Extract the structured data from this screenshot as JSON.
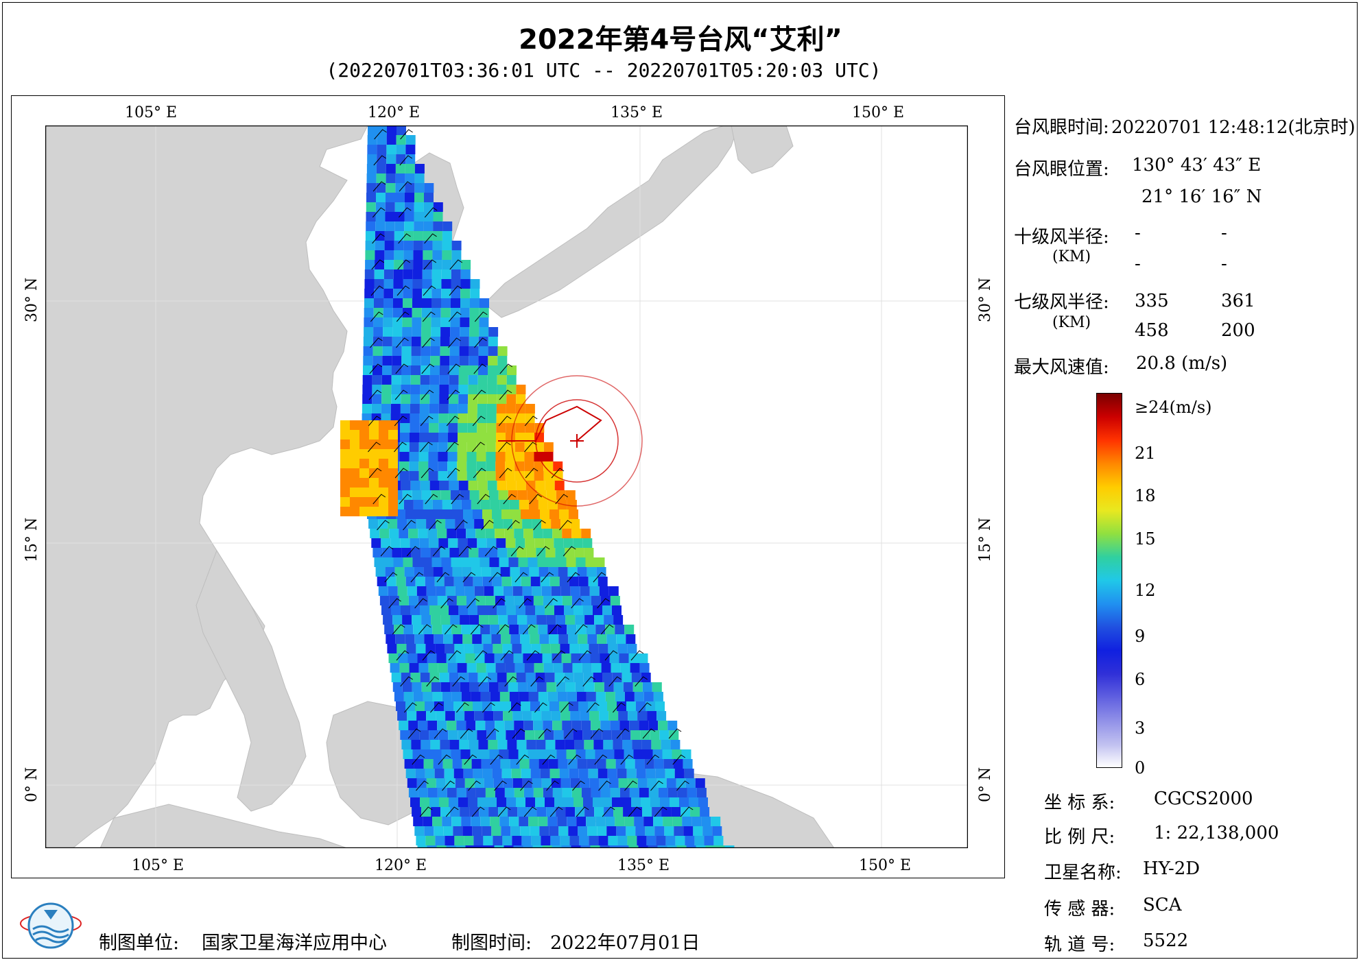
{
  "title": "2022年第4号台风“艾利”",
  "subtitle": "(20220701T03:36:01 UTC -- 20220701T05:20:03 UTC)",
  "map": {
    "lon_ticks_top": [
      "105° E",
      "120° E",
      "135° E",
      "150° E"
    ],
    "lon_ticks_bottom": [
      "105° E",
      "120° E",
      "135° E",
      "150° E"
    ],
    "lat_ticks_left": [
      "30° N",
      "15° N",
      "0° N"
    ],
    "lat_ticks_right": [
      "30° N",
      "15° N",
      "0° N"
    ],
    "land_color": "#d3d3d3",
    "sea_color": "#ffffff",
    "typhoon_track_color": "#cc0000"
  },
  "info": {
    "eye_time_label": "台风眼时间:",
    "eye_time_value": "20220701 12:48:12(北京时)",
    "eye_pos_label": "台风眼位置:",
    "eye_lon": "130° 43′ 43″ E",
    "eye_lat": "21° 16′ 16″ N",
    "r10_label": "十级风半径:",
    "r10_unit": "(KM)",
    "r10_values": [
      "-",
      "-",
      "-",
      "-"
    ],
    "r7_label": "七级风半径:",
    "r7_unit": "(KM)",
    "r7_values": [
      "335",
      "361",
      "458",
      "200"
    ],
    "max_wind_label": "最大风速值:",
    "max_wind_value": "20.8  (m/s)"
  },
  "colorbar": {
    "labels": [
      "≥24(m/s)",
      "21",
      "18",
      "15",
      "12",
      "9",
      "6",
      "3",
      "0"
    ],
    "colors": [
      "#7a0000",
      "#cc0000",
      "#ff3300",
      "#ff8800",
      "#ffcc00",
      "#e8e820",
      "#90e040",
      "#30d0a0",
      "#20c8e8",
      "#2090f0",
      "#2050e0",
      "#1020e0",
      "#3030d8",
      "#6060e0",
      "#9090e8",
      "#c0c0f0",
      "#ffffff"
    ]
  },
  "meta": {
    "crs_label": "坐 标 系:",
    "crs_value": "CGCS2000",
    "scale_label": "比 例 尺:",
    "scale_value": "1: 22,138,000",
    "sat_label": "卫星名称:",
    "sat_value": "HY-2D",
    "sensor_label": "传 感 器:",
    "sensor_value": "SCA",
    "orbit_label": "轨 道 号:",
    "orbit_value": "5522"
  },
  "footer": {
    "unit_label": "制图单位:",
    "unit_value": "国家卫星海洋应用中心",
    "date_label": "制图时间:",
    "date_value": "2022年07月01日"
  }
}
